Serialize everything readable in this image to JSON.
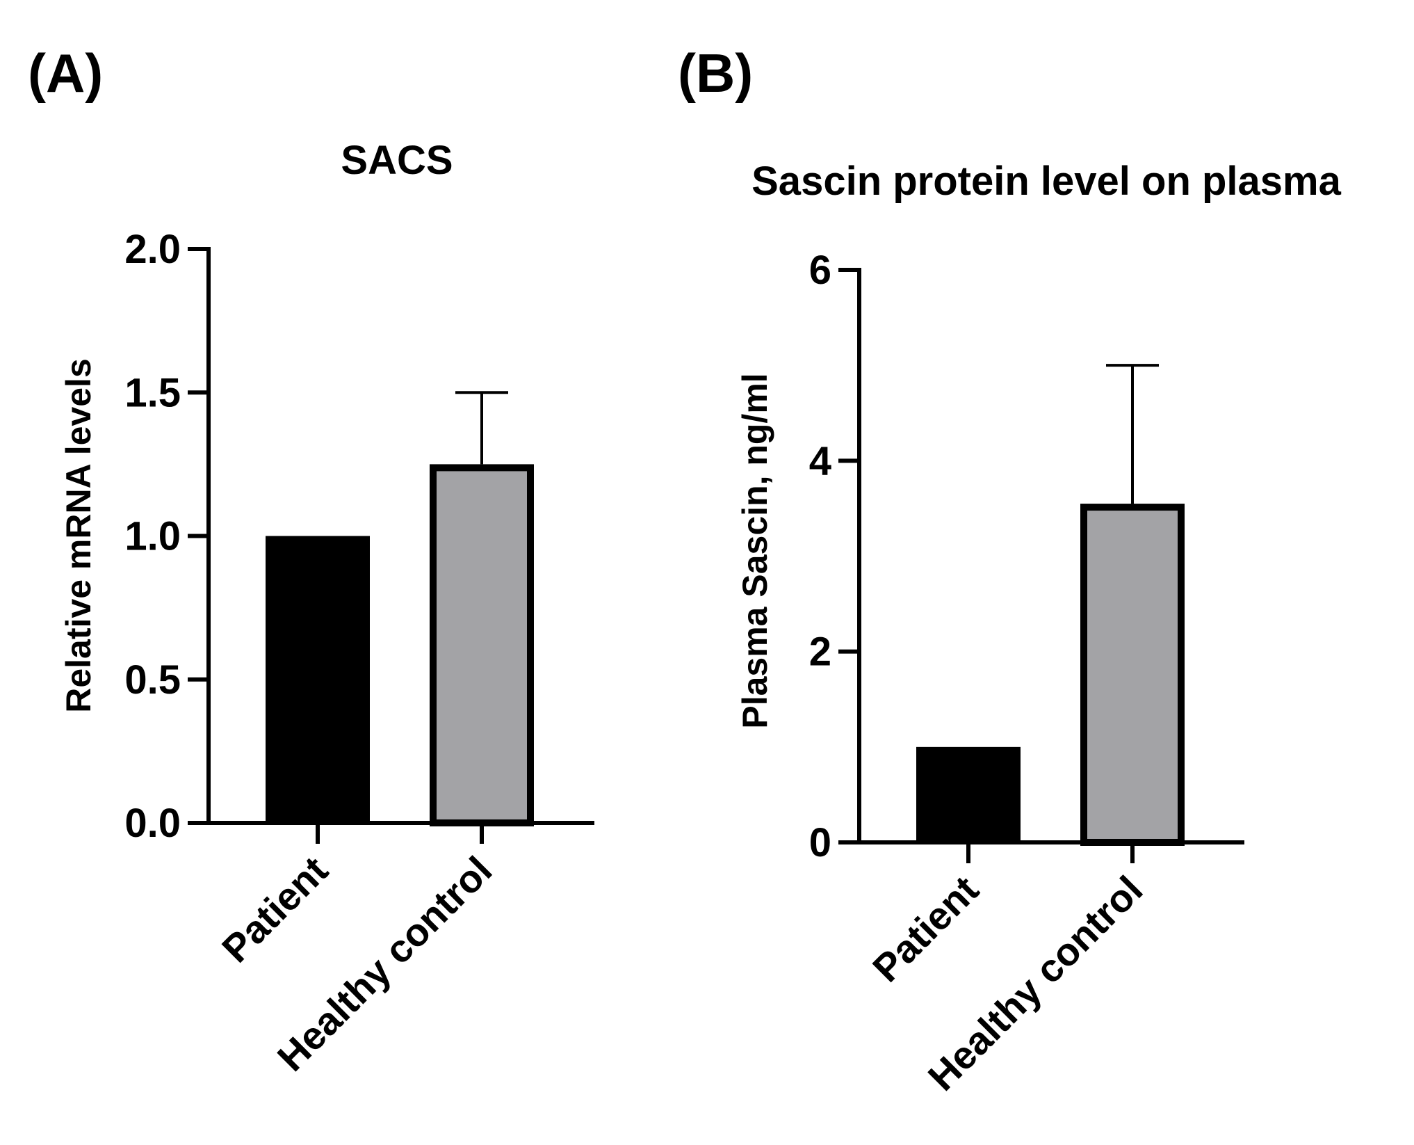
{
  "panels": {
    "a_label": "(A)",
    "b_label": "(B)"
  },
  "chart_data": [
    {
      "type": "bar",
      "title": "SACS",
      "xlabel": "",
      "ylabel": "Relative mRNA levels",
      "categories": [
        "Patient",
        "Healthy control"
      ],
      "values": [
        1.0,
        1.25
      ],
      "error_upper": [
        0,
        1.5
      ],
      "ylim": [
        0,
        2.0
      ],
      "yticks": [
        0.0,
        0.5,
        1.0,
        1.5,
        2.0
      ],
      "ytick_labels": [
        "0.0",
        "0.5",
        "1.0",
        "1.5",
        "2.0"
      ],
      "bar_fills": [
        "#000000",
        "#a3a3a6"
      ],
      "grid": false
    },
    {
      "type": "bar",
      "title": "Sascin protein level on plasma",
      "xlabel": "",
      "ylabel": "Plasma Sascin, ng/ml",
      "categories": [
        "Patient",
        "Healthy control"
      ],
      "values": [
        1.0,
        3.55
      ],
      "error_upper": [
        0,
        5.0
      ],
      "ylim": [
        0,
        6
      ],
      "yticks": [
        0,
        2,
        4,
        6
      ],
      "ytick_labels": [
        "0",
        "2",
        "4",
        "6"
      ],
      "bar_fills": [
        "#000000",
        "#a3a3a6"
      ],
      "grid": false
    }
  ]
}
